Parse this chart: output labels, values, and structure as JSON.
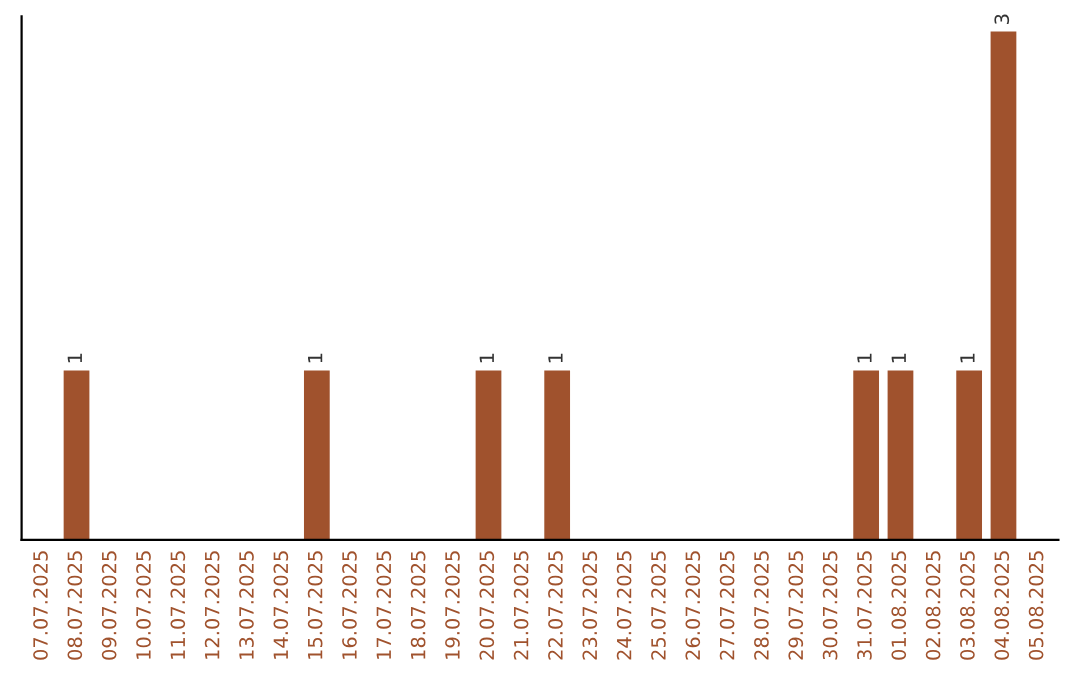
{
  "chart_data": {
    "type": "bar",
    "categories": [
      "07.07.2025",
      "08.07.2025",
      "09.07.2025",
      "10.07.2025",
      "11.07.2025",
      "12.07.2025",
      "13.07.2025",
      "14.07.2025",
      "15.07.2025",
      "16.07.2025",
      "17.07.2025",
      "18.07.2025",
      "19.07.2025",
      "20.07.2025",
      "21.07.2025",
      "22.07.2025",
      "23.07.2025",
      "24.07.2025",
      "25.07.2025",
      "26.07.2025",
      "27.07.2025",
      "28.07.2025",
      "29.07.2025",
      "30.07.2025",
      "31.07.2025",
      "01.08.2025",
      "02.08.2025",
      "03.08.2025",
      "04.08.2025",
      "05.08.2025"
    ],
    "values": [
      0,
      1,
      0,
      0,
      0,
      0,
      0,
      0,
      1,
      0,
      0,
      0,
      0,
      1,
      0,
      1,
      0,
      0,
      0,
      0,
      0,
      0,
      0,
      0,
      1,
      1,
      0,
      1,
      3,
      0
    ],
    "color": "#a0522d",
    "value_labels": [
      null,
      "1",
      null,
      null,
      null,
      null,
      null,
      null,
      "1",
      null,
      null,
      null,
      null,
      "1",
      null,
      "1",
      null,
      null,
      null,
      null,
      null,
      null,
      null,
      null,
      "1",
      "1",
      null,
      "1",
      "3",
      null
    ],
    "tick_labels": "x",
    "grid": false
  }
}
